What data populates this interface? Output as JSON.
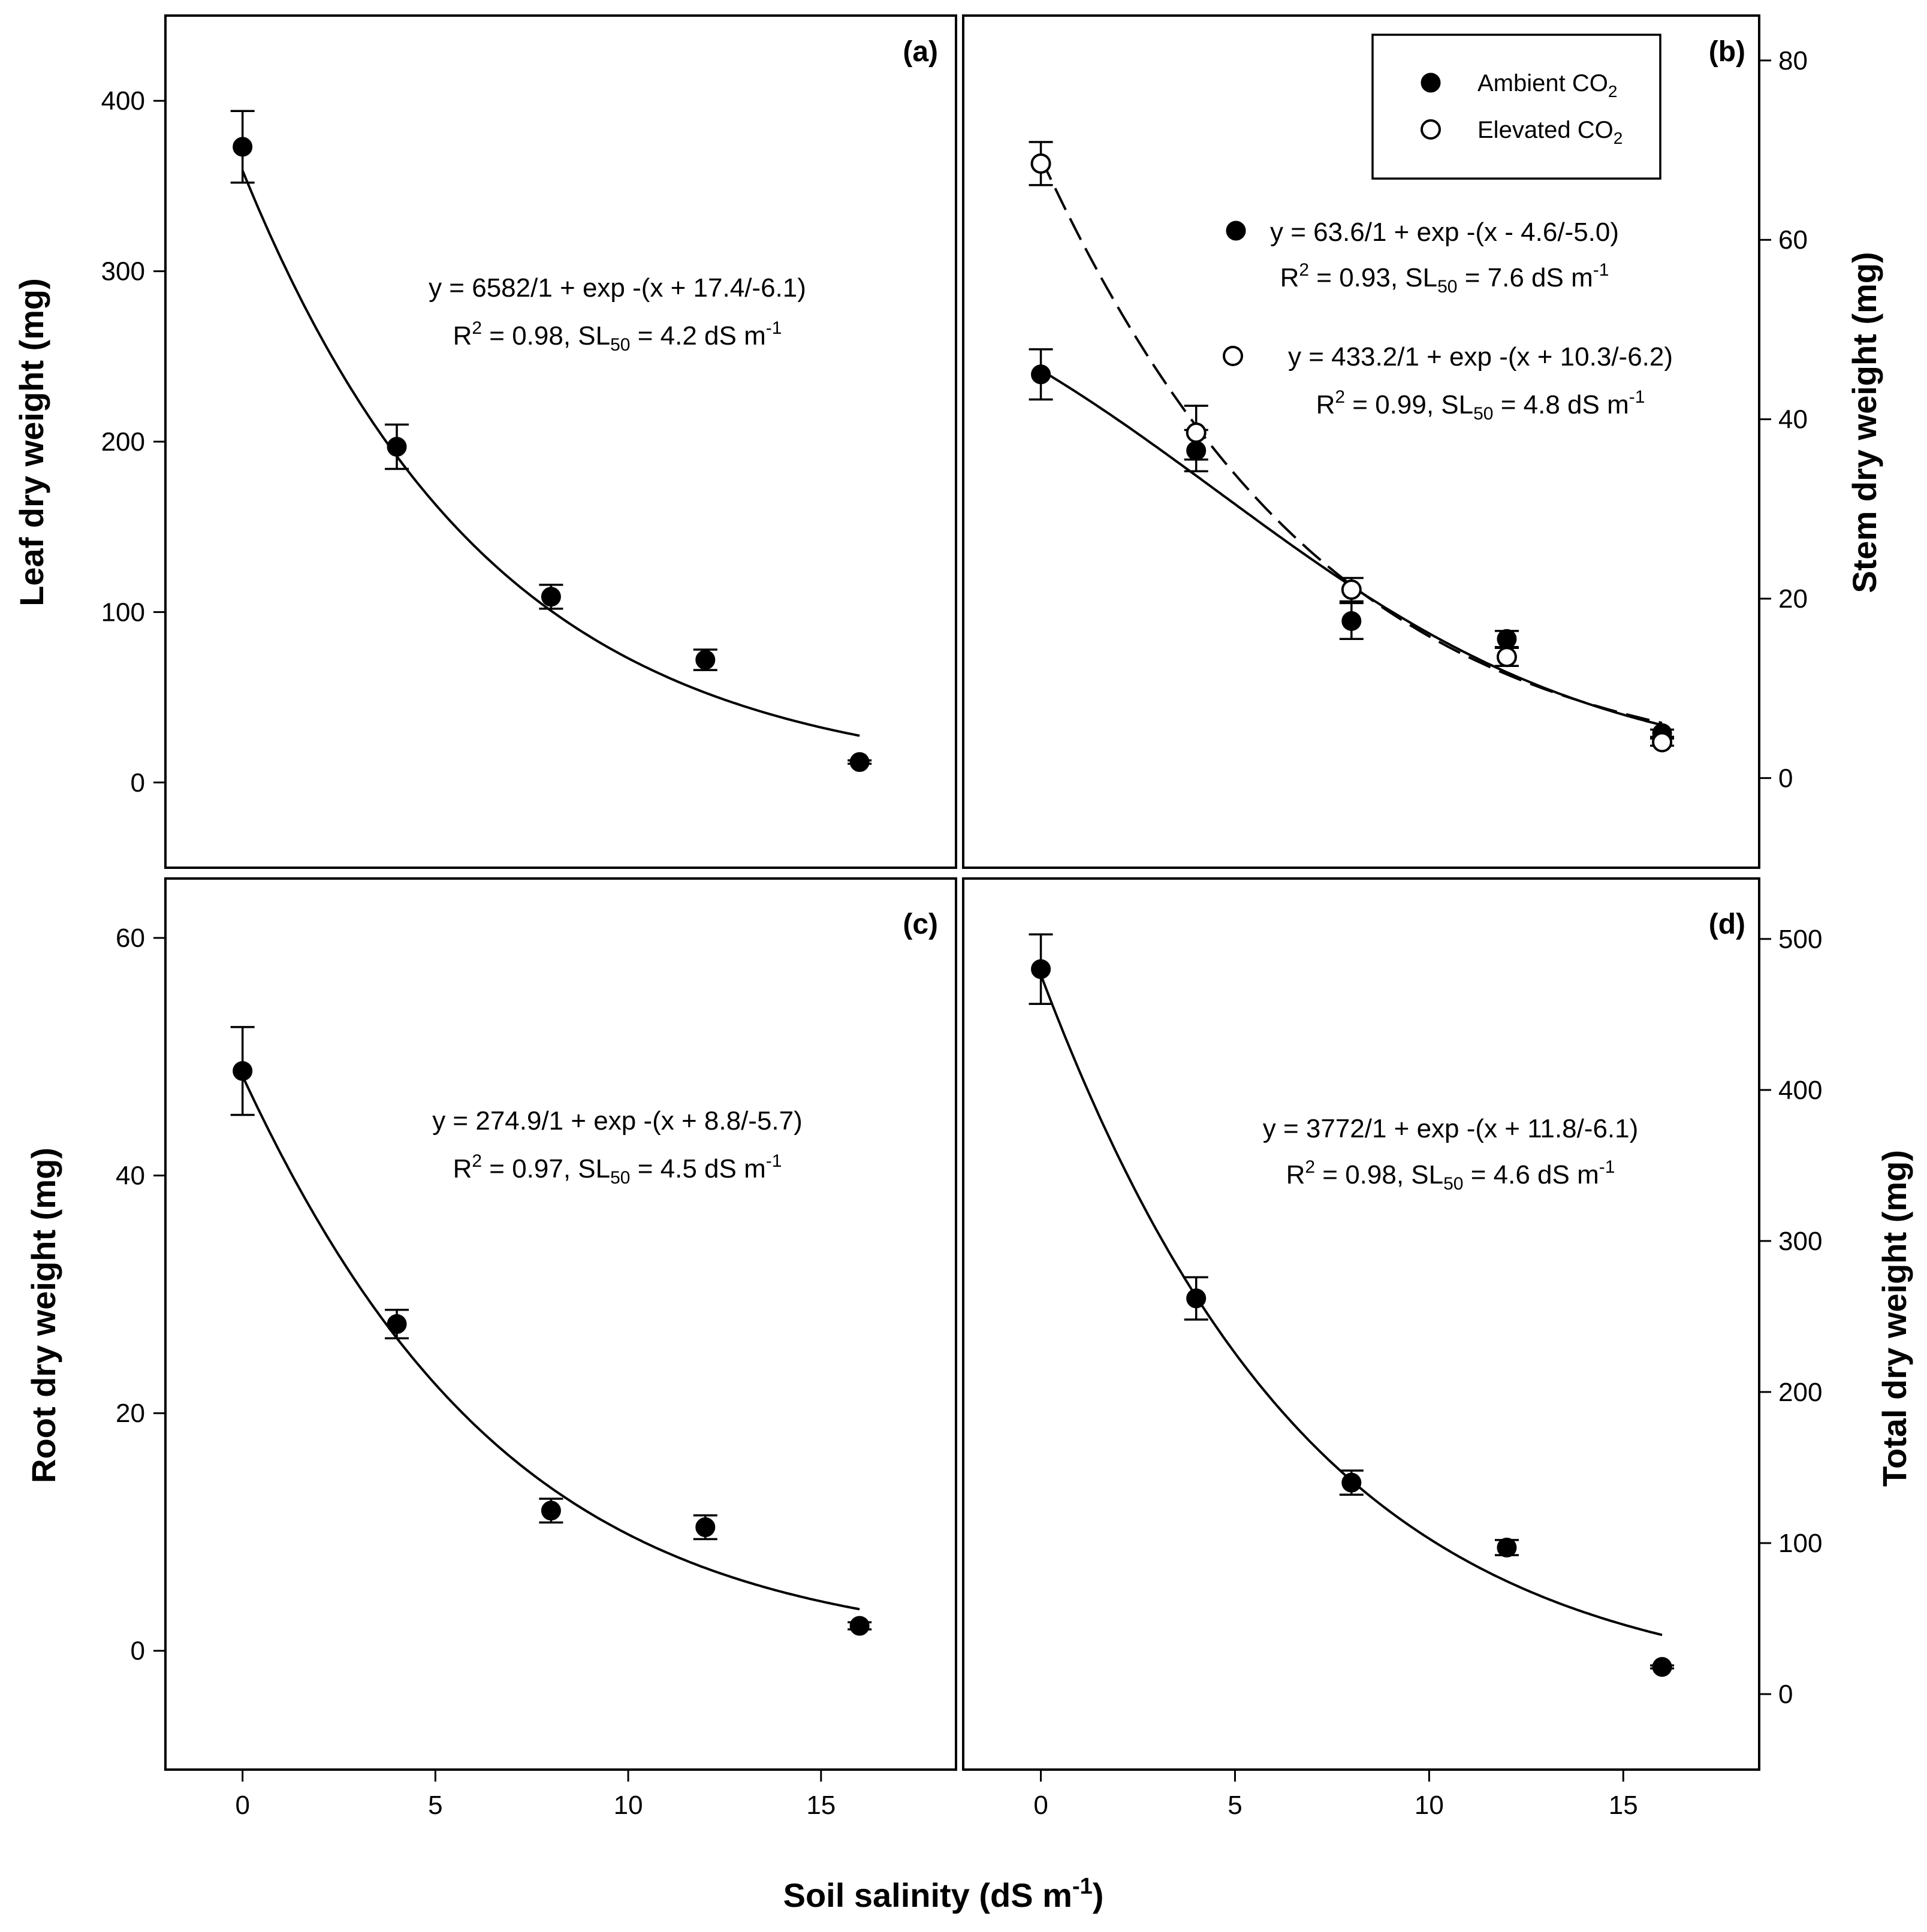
{
  "chart_data": [
    {
      "id": "a",
      "type": "scatter",
      "panel_label": "(a)",
      "ylabel": "Leaf dry weight (mg)",
      "xlim": [
        -2,
        18.5
      ],
      "ylim": [
        -50,
        450
      ],
      "yticks": [
        0,
        100,
        200,
        300,
        400
      ],
      "xticks": [],
      "y_axis_side": "left",
      "series": [
        {
          "name": "Ambient CO2",
          "marker": "filled",
          "x": [
            0,
            4,
            8,
            12,
            16
          ],
          "y": [
            373,
            197,
            109,
            72,
            12
          ],
          "err": [
            21,
            13,
            7,
            6,
            1
          ],
          "fit": {
            "A": 6582,
            "x0": 17.4,
            "b": 6.1,
            "x_from": 0,
            "x_to": 16,
            "style": "solid"
          }
        }
      ],
      "equations": [
        {
          "prefix": "y = 6582/1 + exp -(x + 17.4/-6.1)",
          "r2_label": "R",
          "r2_sup": "2",
          "r2_text": " = 0.98, SL",
          "sl_sub": "50",
          "sl_text": " = 4.2 dS m",
          "unit_sup": "-1"
        }
      ]
    },
    {
      "id": "b",
      "type": "scatter",
      "panel_label": "(b)",
      "ylabel": "Stem dry weight (mg)",
      "xlim": [
        -2,
        18.5
      ],
      "ylim": [
        -10,
        85
      ],
      "yticks": [
        0,
        20,
        40,
        60,
        80
      ],
      "xticks": [],
      "y_axis_side": "right",
      "series": [
        {
          "name": "Ambient CO2",
          "marker": "filled",
          "x": [
            0,
            4,
            8,
            12,
            16
          ],
          "y": [
            45,
            36.5,
            17.5,
            15.5,
            5
          ],
          "err": [
            2.8,
            2.3,
            2,
            0.9,
            0.4
          ],
          "fit": {
            "A": 63.6,
            "x0": -4.6,
            "b": 5.0,
            "x_from": 0,
            "x_to": 16,
            "style": "solid"
          }
        },
        {
          "name": "Elevated CO2",
          "marker": "open",
          "x": [
            0,
            4,
            8,
            12,
            16
          ],
          "y": [
            68.5,
            38.5,
            21,
            13.5,
            4
          ],
          "err": [
            2.4,
            3.0,
            1.3,
            1.0,
            0.4
          ],
          "fit": {
            "A": 433.2,
            "x0": 10.3,
            "b": 6.2,
            "x_from": 0,
            "x_to": 16,
            "style": "dashed"
          }
        }
      ],
      "legend": {
        "items": [
          {
            "marker": "filled",
            "text": "Ambient CO",
            "sub": "2"
          },
          {
            "marker": "open",
            "text": "Elevated CO",
            "sub": "2"
          }
        ],
        "location": "top-right"
      },
      "equations": [
        {
          "prefix": "y = 63.6/1 + exp -(x - 4.6/-5.0)",
          "r2_label": "R",
          "r2_sup": "2",
          "r2_text": " = 0.93, SL",
          "sl_sub": "50",
          "sl_text": " = 7.6 dS m",
          "unit_sup": "-1",
          "marker": "filled"
        },
        {
          "prefix": "y = 433.2/1 + exp -(x + 10.3/-6.2)",
          "r2_label": "R",
          "r2_sup": "2",
          "r2_text": " = 0.99, SL",
          "sl_sub": "50",
          "sl_text": " = 4.8 dS m",
          "unit_sup": "-1",
          "marker": "open"
        }
      ]
    },
    {
      "id": "c",
      "type": "scatter",
      "panel_label": "(c)",
      "ylabel": "Root dry weight (mg)",
      "xlim": [
        -2,
        18.5
      ],
      "ylim": [
        -10,
        65
      ],
      "yticks": [
        0,
        20,
        40,
        60
      ],
      "xticks": [
        0,
        5,
        10,
        15
      ],
      "y_axis_side": "left",
      "series": [
        {
          "name": "Ambient CO2",
          "marker": "filled",
          "x": [
            0,
            4,
            8,
            12,
            16
          ],
          "y": [
            48.8,
            27.5,
            11.8,
            10.4,
            2.1
          ],
          "err": [
            3.7,
            1.2,
            1.0,
            1.0,
            0.3
          ],
          "fit": {
            "A": 274.9,
            "x0": 8.8,
            "b": 5.7,
            "x_from": 0,
            "x_to": 16,
            "style": "solid"
          }
        }
      ],
      "equations": [
        {
          "prefix": "y = 274.9/1 + exp -(x + 8.8/-5.7)",
          "r2_label": "R",
          "r2_sup": "2",
          "r2_text": " = 0.97, SL",
          "sl_sub": "50",
          "sl_text": " = 4.5 dS m",
          "unit_sup": "-1"
        }
      ]
    },
    {
      "id": "d",
      "type": "scatter",
      "panel_label": "(d)",
      "ylabel": "Total dry weight (mg)",
      "xlim": [
        -2,
        18.5
      ],
      "ylim": [
        -50,
        540
      ],
      "yticks": [
        0,
        100,
        200,
        300,
        400,
        500
      ],
      "xticks": [
        0,
        5,
        10,
        15
      ],
      "y_axis_side": "right",
      "series": [
        {
          "name": "Ambient CO2",
          "marker": "filled",
          "x": [
            0,
            4,
            8,
            12,
            16
          ],
          "y": [
            480,
            262,
            140,
            97,
            18
          ],
          "err": [
            23,
            14,
            8,
            5,
            1
          ],
          "fit": {
            "A": 3772,
            "x0": 11.8,
            "b": 6.1,
            "x_from": 0,
            "x_to": 16,
            "style": "solid"
          }
        }
      ],
      "equations": [
        {
          "prefix": "y = 3772/1 + exp -(x + 11.8/-6.1)",
          "r2_label": "R",
          "r2_sup": "2",
          "r2_text": " = 0.98, SL",
          "sl_sub": "50",
          "sl_text": " = 4.6 dS m",
          "unit_sup": "-1"
        }
      ]
    }
  ],
  "shared_xlabel": {
    "text": "Soil salinity (dS m",
    "sup": "-1",
    "close": ")"
  }
}
